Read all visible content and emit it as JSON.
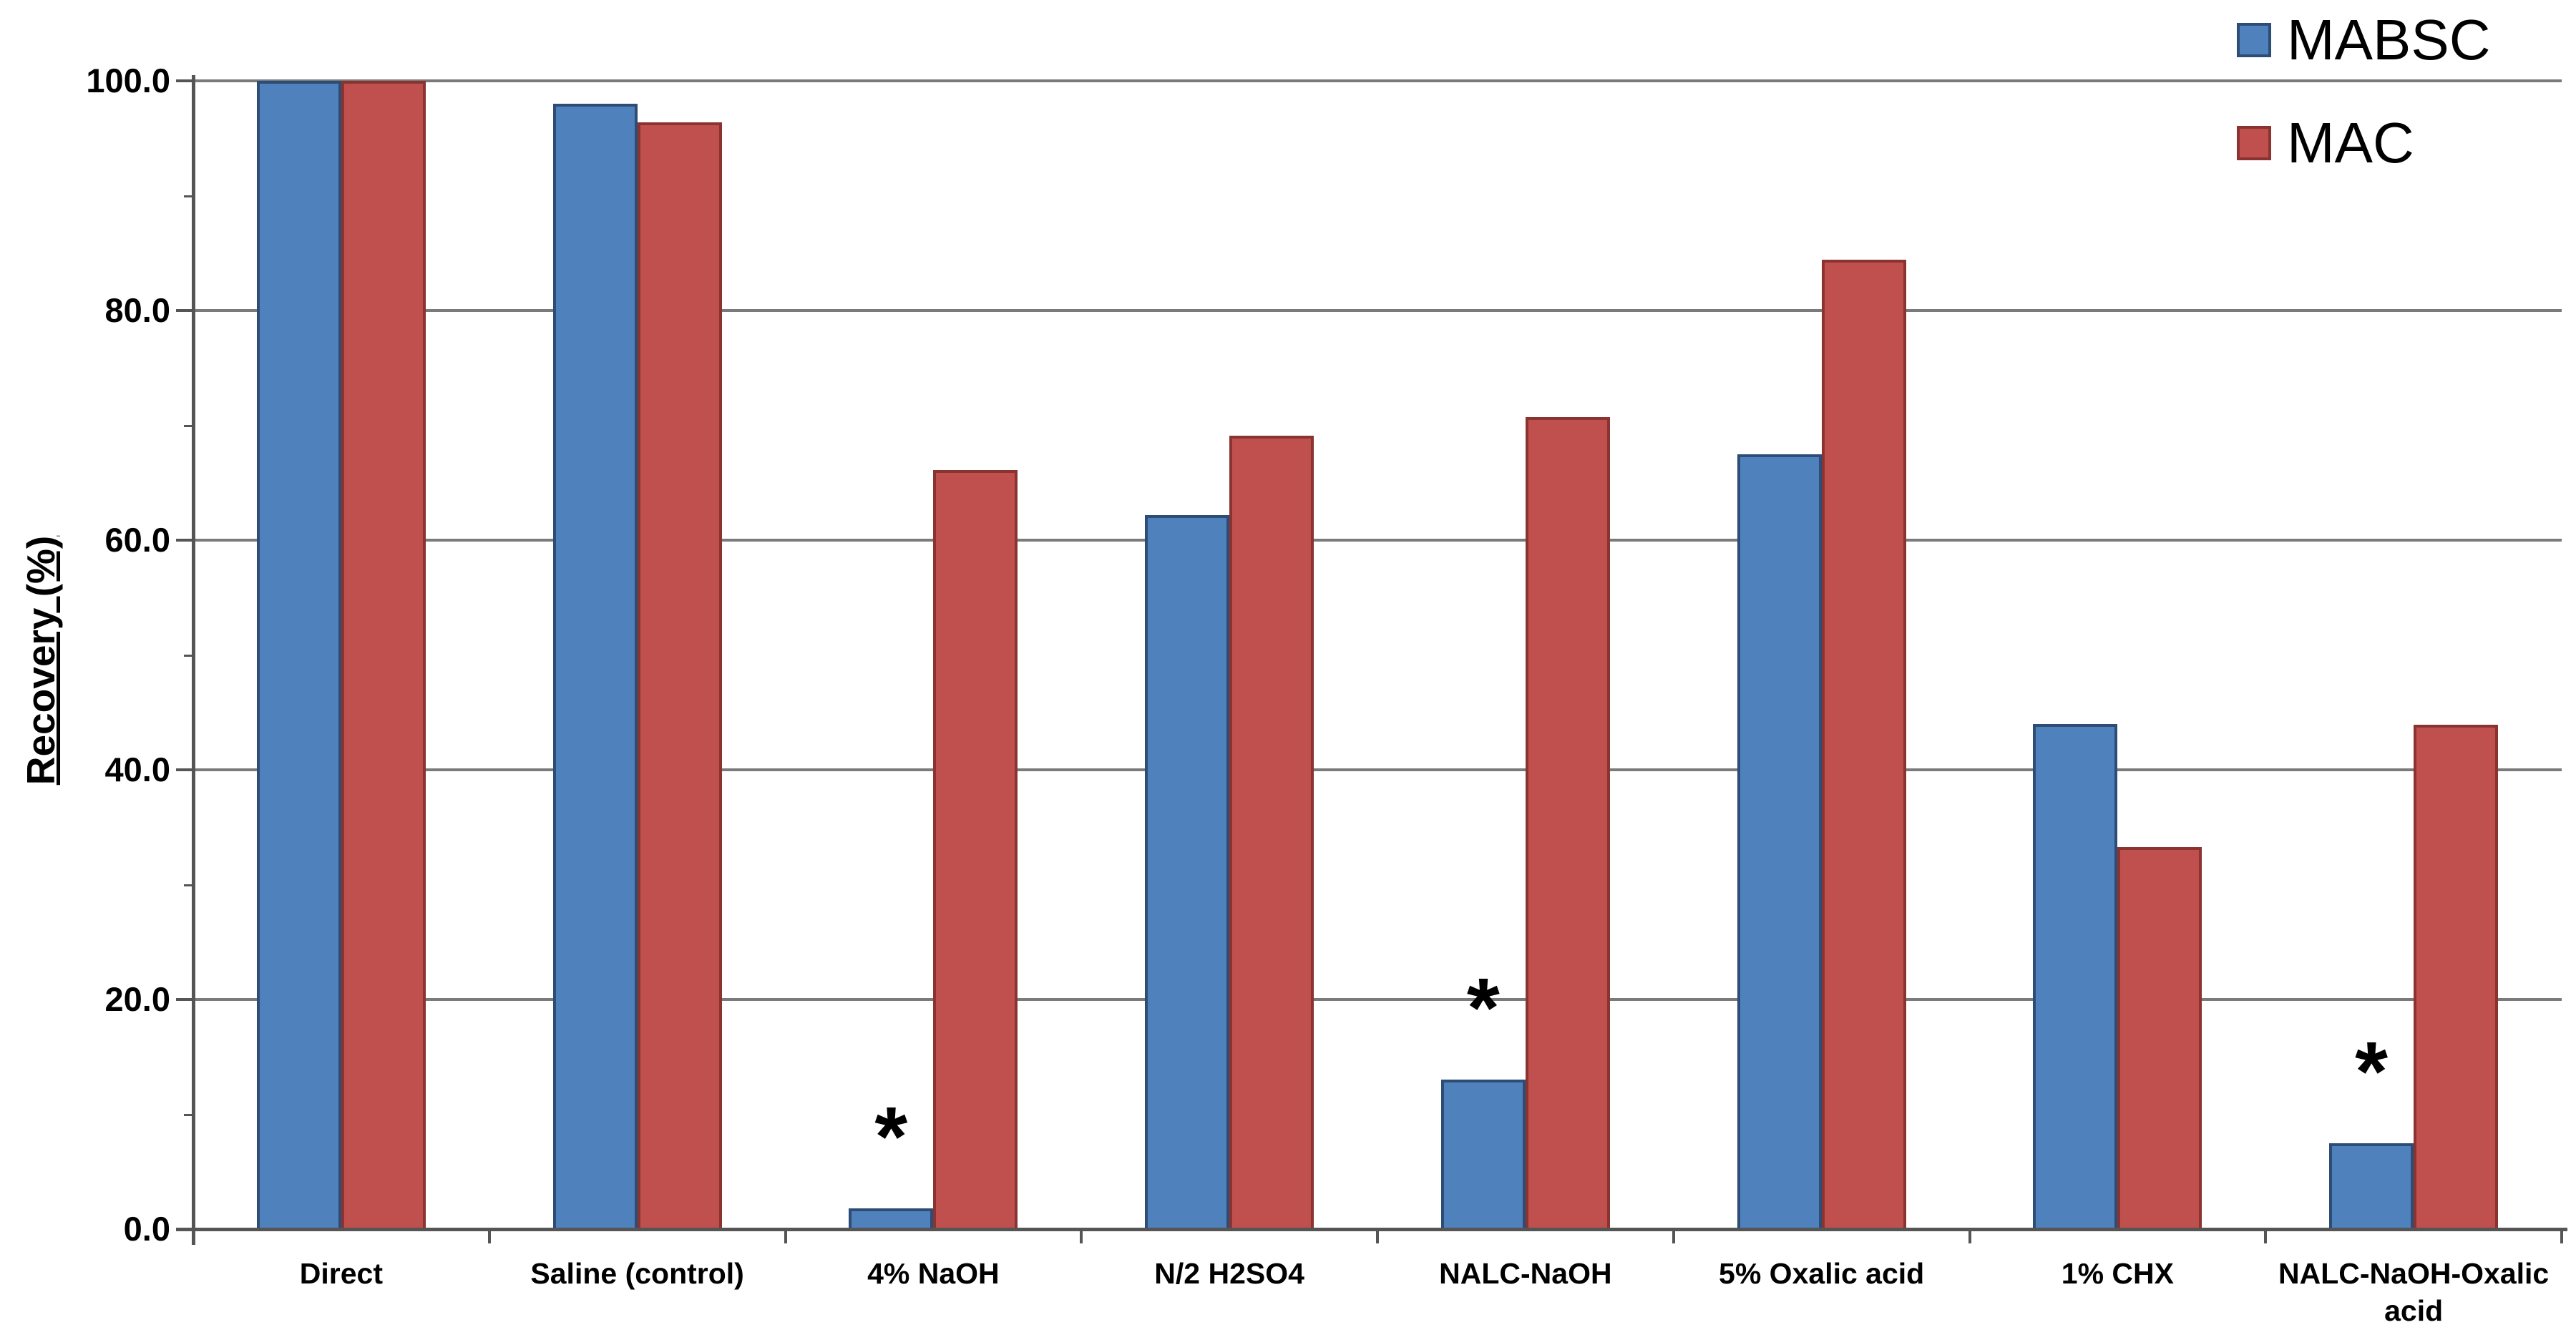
{
  "chart_data": {
    "type": "bar",
    "title": "",
    "xlabel": "",
    "ylabel": "Recovery (%)",
    "ylim": [
      0,
      100
    ],
    "grid": true,
    "legend_position": "top-right",
    "ytick_labels": [
      "100.0",
      "80.0",
      "60.0",
      "40.0",
      "20.0",
      "0.0"
    ],
    "categories": [
      "Direct",
      "Saline (control)",
      "4% NaOH",
      "N/2 H2SO4",
      "NALC-NaOH",
      "5% Oxalic acid",
      "1% CHX",
      "NALC-NaOH-Oxalic acid"
    ],
    "series": [
      {
        "name": "MABSC",
        "fill_color": "#4F81BD",
        "border_color": "#2D4D76",
        "values": [
          100.0,
          98.0,
          1.8,
          62.2,
          13.0,
          67.5,
          44.0,
          7.5
        ]
      },
      {
        "name": "MAC",
        "fill_color": "#C0504D",
        "border_color": "#8B3331",
        "values": [
          100.0,
          96.4,
          66.1,
          69.1,
          70.7,
          84.4,
          33.3,
          43.9
        ]
      }
    ],
    "annotations": [
      {
        "category": "4% NaOH",
        "series": "MABSC",
        "symbol": "*"
      },
      {
        "category": "NALC-NaOH",
        "series": "MABSC",
        "symbol": "*"
      },
      {
        "category": "NALC-NaOH-Oxalic acid",
        "series": "MABSC",
        "symbol": "*"
      }
    ],
    "colors": {
      "gridline": "#7a7a7a",
      "axis": "#555555",
      "text": "#000000",
      "background": "#ffffff"
    }
  }
}
